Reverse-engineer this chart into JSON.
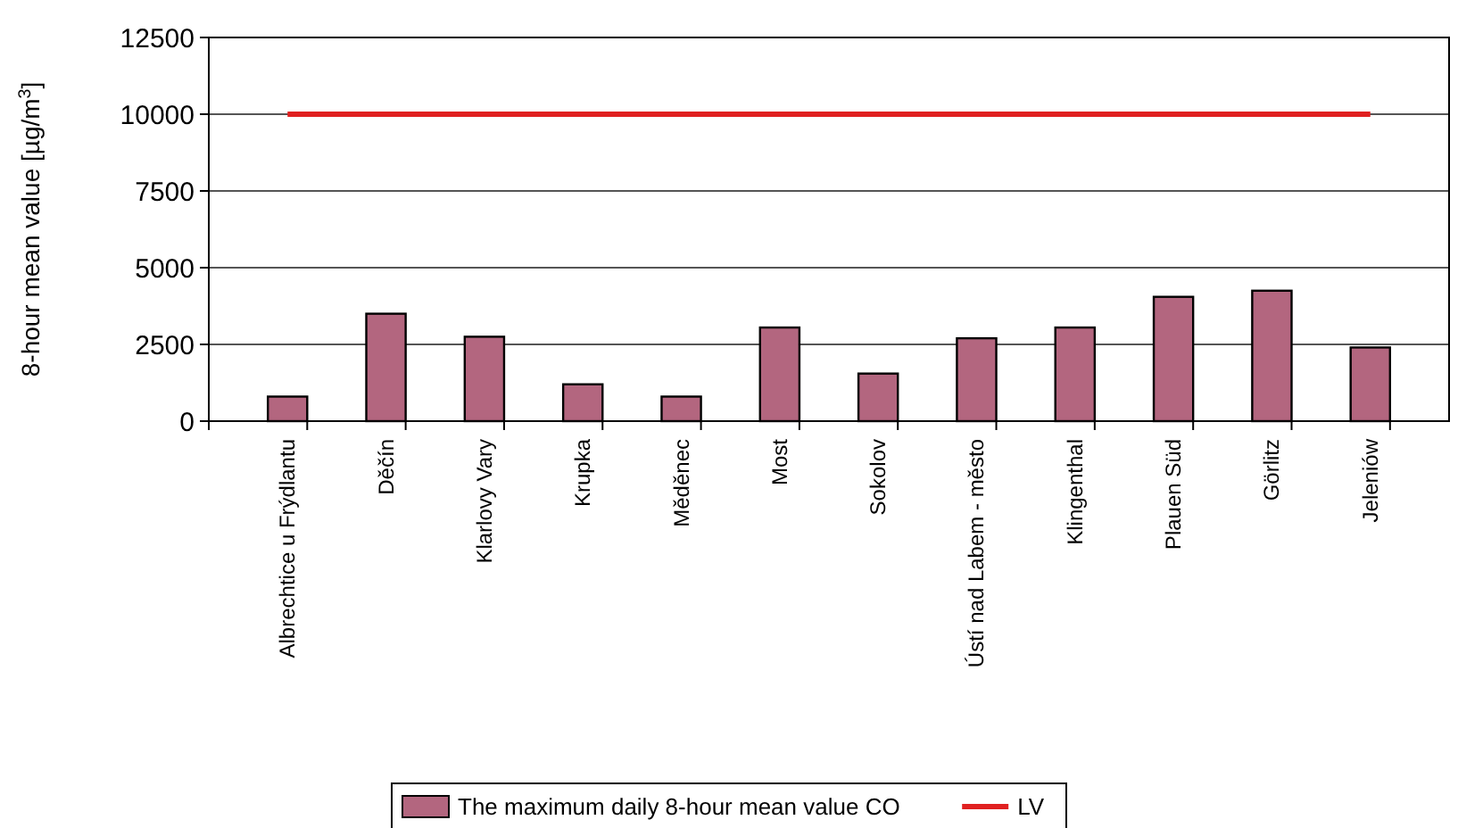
{
  "chart_data": {
    "type": "bar",
    "ylabel": "8-hour mean value [µg/m$^{3}$]",
    "categories": [
      "Albrechtice  u  Frýdlantu",
      "Děčín",
      "Klarlovy  Vary",
      "Krupka",
      "Měděnec",
      "Most",
      "Sokolov",
      "Ústí  nad  Labem  -  město",
      "Klingenthal",
      "Plauen  Süd",
      "Görlitz",
      "Jeleniów"
    ],
    "series": [
      {
        "name": "The maximum daily 8-hour mean value CO",
        "color": "#b3667f",
        "values": [
          800,
          3500,
          2750,
          1200,
          800,
          3050,
          1550,
          2700,
          3050,
          4050,
          4250,
          2400
        ]
      },
      {
        "name": "LV",
        "type": "line",
        "color": "#e02020",
        "values": [
          10000,
          10000,
          10000,
          10000,
          10000,
          10000,
          10000,
          10000,
          10000,
          10000,
          10000,
          10000
        ]
      }
    ],
    "ylim": [
      0,
      12500
    ],
    "yticks": [
      0,
      2500,
      5000,
      7500,
      10000,
      12500
    ],
    "grid": "y",
    "legend": "bottom"
  }
}
